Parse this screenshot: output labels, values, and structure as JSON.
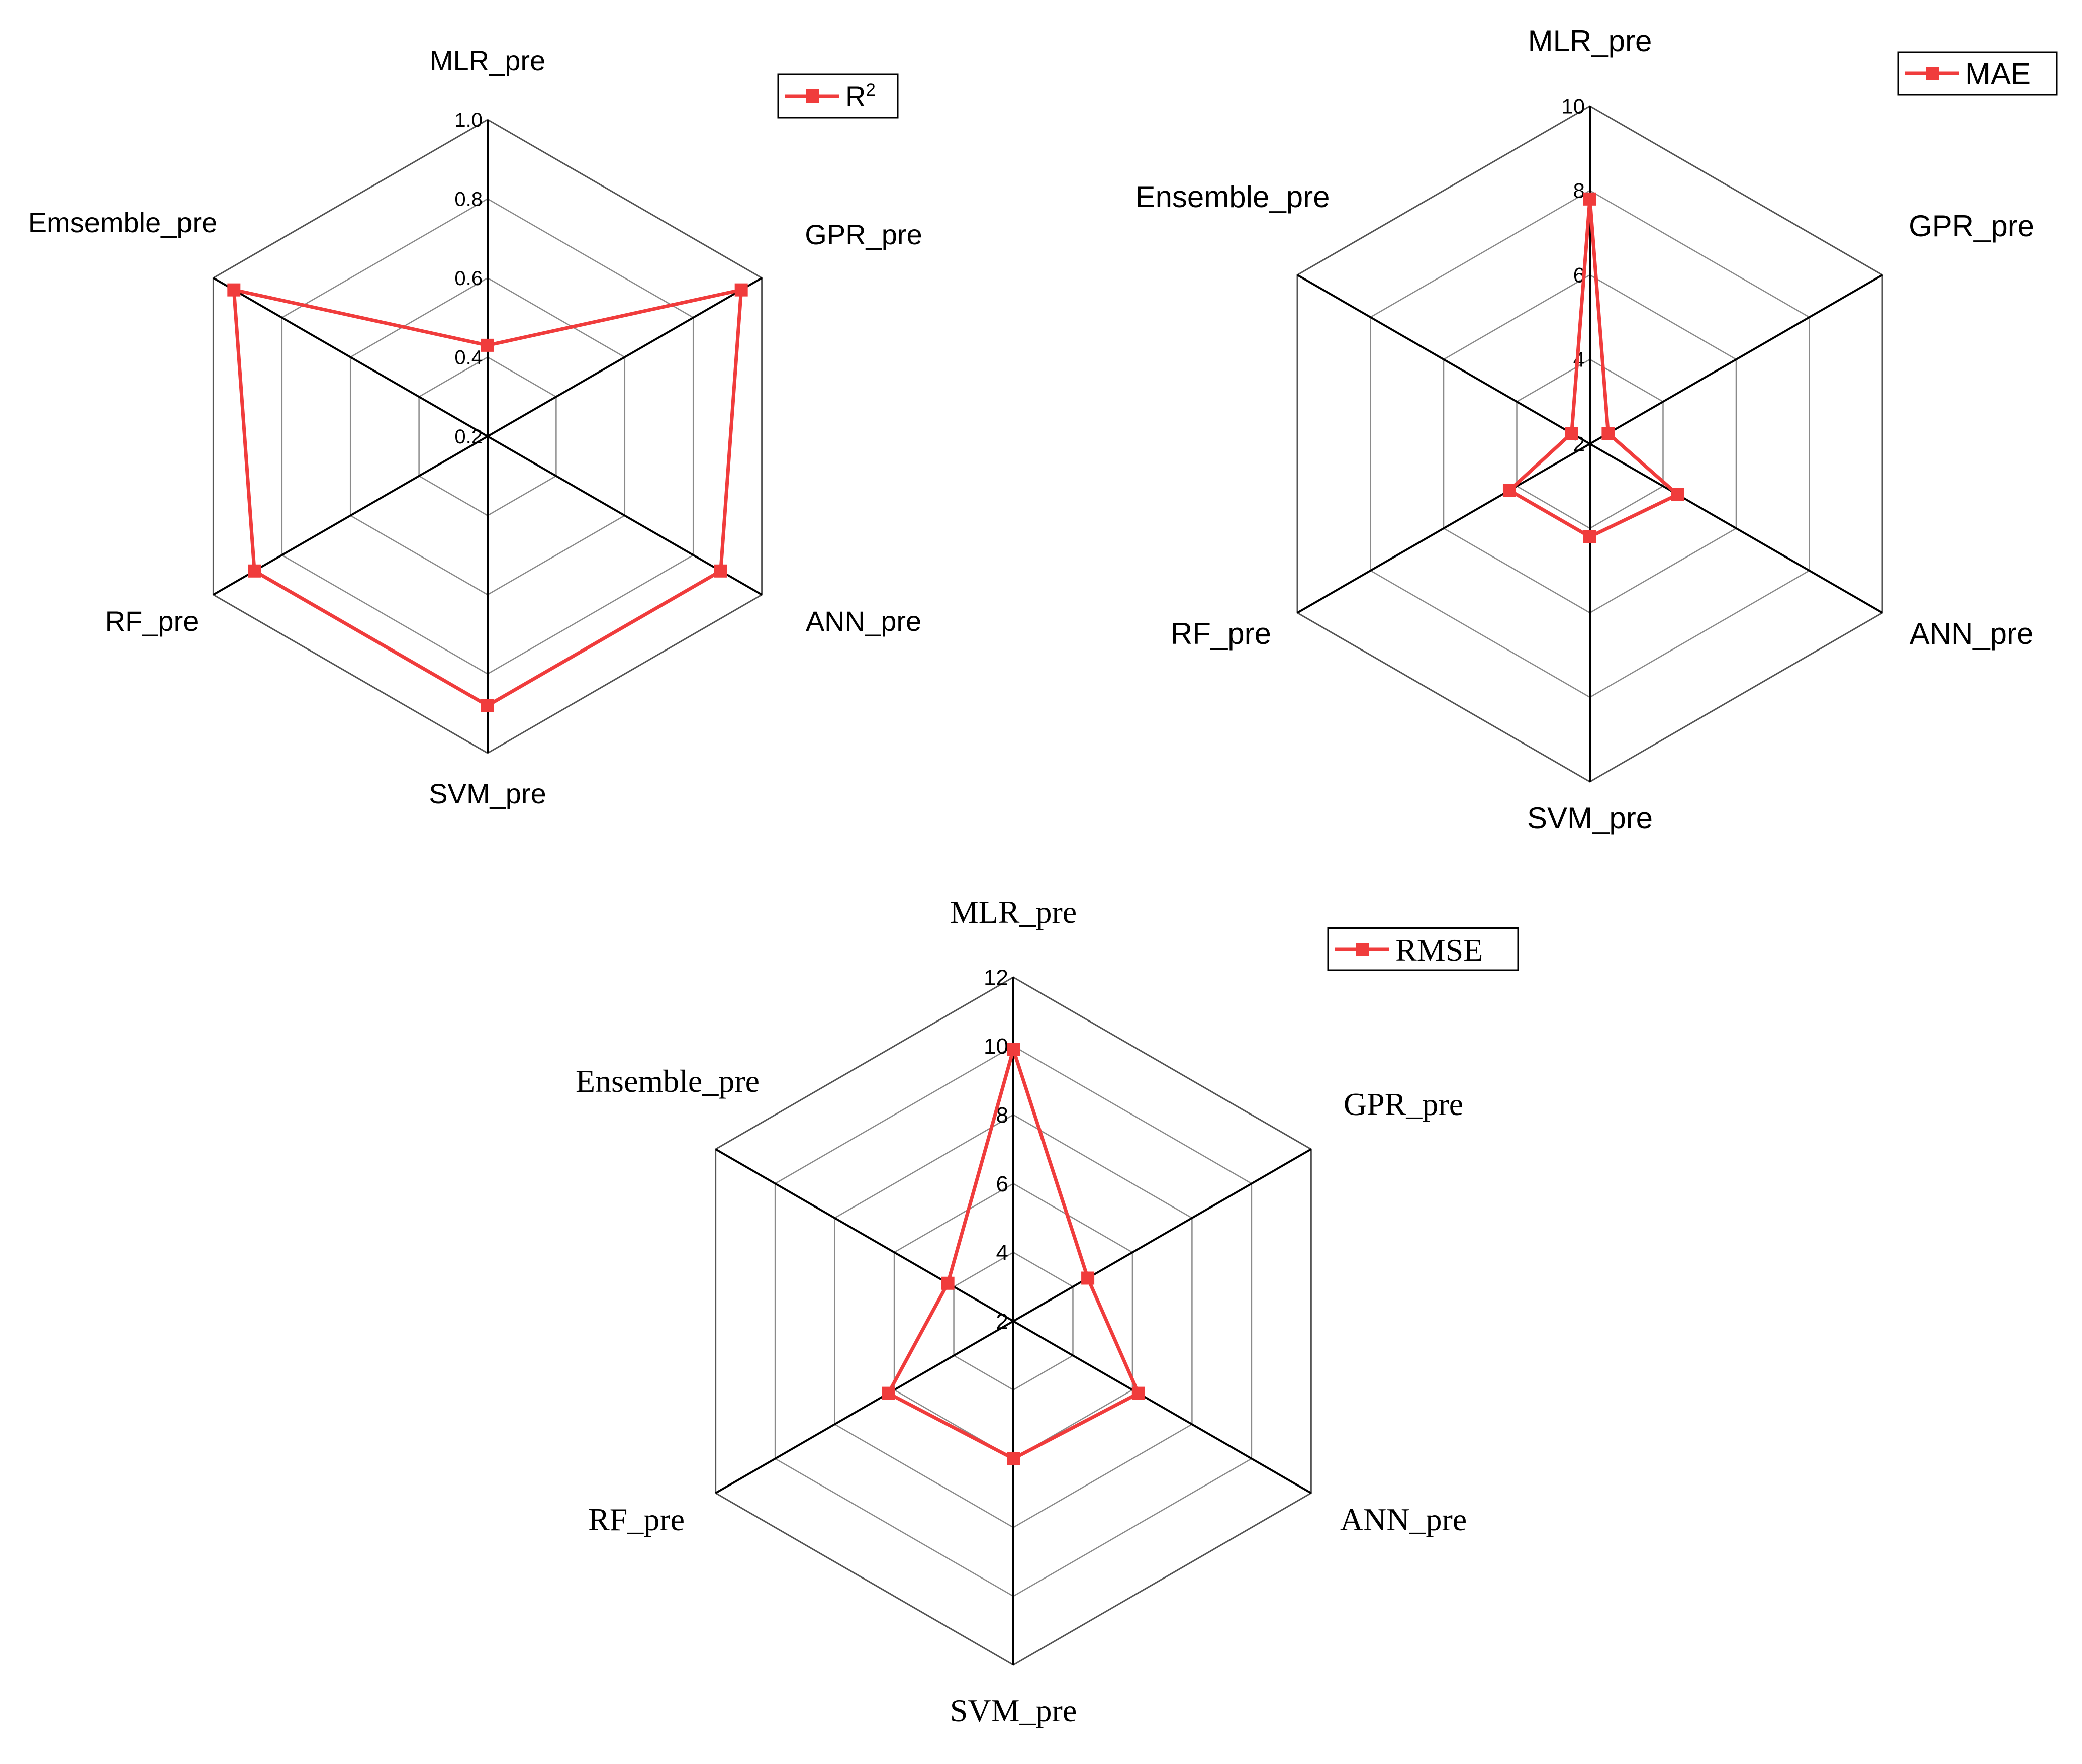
{
  "chart_data": [
    {
      "type": "radar",
      "categories": [
        "MLR_pre",
        "GPR_pre",
        "ANN_pre",
        "SVM_pre",
        "RF_pre",
        "Emsemble_pre"
      ],
      "series": [
        {
          "name": "R",
          "superscript": "2",
          "values": [
            0.43,
            0.94,
            0.88,
            0.88,
            0.88,
            0.94
          ],
          "color": "#f03c3c"
        }
      ],
      "rlim": [
        0.2,
        1.0
      ],
      "ticks": [
        "0.2",
        "0.4",
        "0.6",
        "0.8",
        "1.0"
      ],
      "grid": true,
      "legend_position": "top-right"
    },
    {
      "type": "radar",
      "categories": [
        "MLR_pre",
        "GPR_pre",
        "ANN_pre",
        "SVM_pre",
        "RF_pre",
        "Ensemble_pre"
      ],
      "series": [
        {
          "name": "MAE",
          "values": [
            7.8,
            2.5,
            4.4,
            4.2,
            4.2,
            2.5
          ],
          "color": "#f03c3c"
        }
      ],
      "rlim": [
        2,
        10
      ],
      "ticks": [
        "2",
        "4",
        "6",
        "8",
        "10"
      ],
      "grid": true,
      "legend_position": "top-right"
    },
    {
      "type": "radar",
      "categories": [
        "MLR_pre",
        "GPR_pre",
        "ANN_pre",
        "SVM_pre",
        "RF_pre",
        "Ensemble_pre"
      ],
      "series": [
        {
          "name": "RMSE",
          "values": [
            9.9,
            4.5,
            6.2,
            6.0,
            6.2,
            4.2
          ],
          "color": "#f03c3c"
        }
      ],
      "rlim": [
        2,
        12
      ],
      "ticks": [
        "2",
        "4",
        "6",
        "8",
        "10",
        "12"
      ],
      "grid": true,
      "legend_position": "top-right"
    }
  ]
}
